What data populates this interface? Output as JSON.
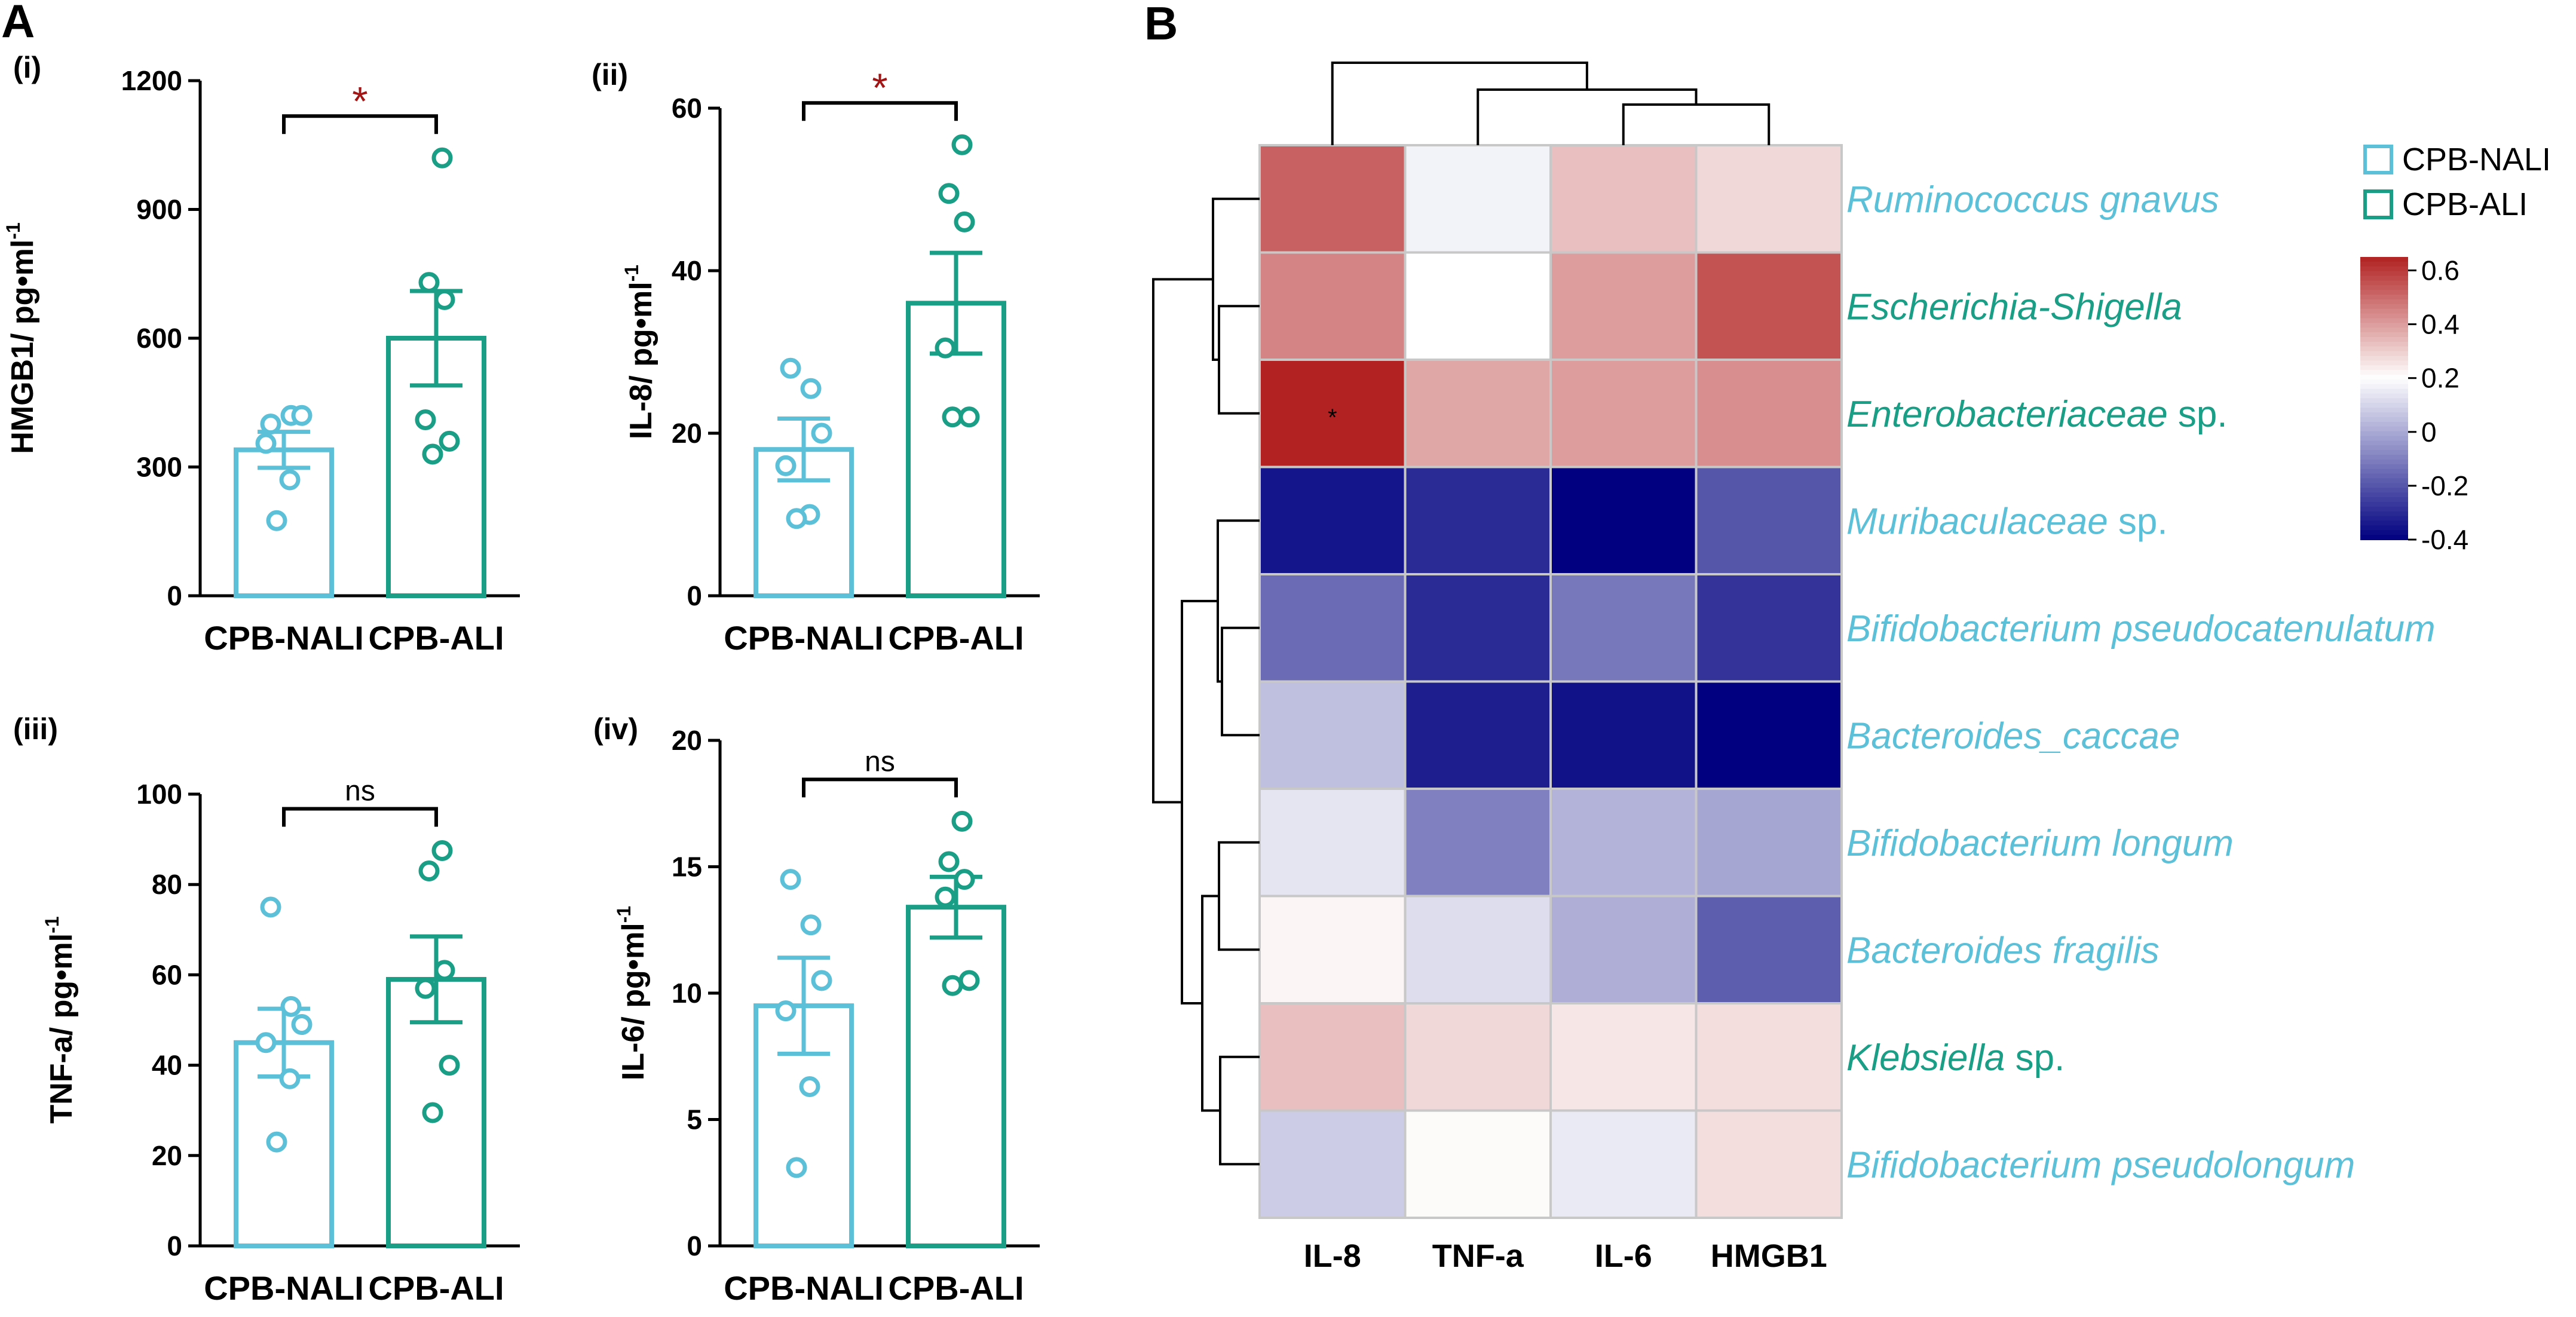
{
  "panel_labels": {
    "a": "A",
    "b": "B"
  },
  "colors": {
    "nali": "#5bc0d8",
    "ali": "#1a9e86",
    "sig": "#a31515",
    "axis": "#000000"
  },
  "chart_data": [
    {
      "type": "bar",
      "id": "p1",
      "sublabel": "(i)",
      "title": "",
      "ylabel": "HMGB1/ pg•ml",
      "ylabel_sup": "-1",
      "ylim": [
        0,
        1200
      ],
      "yticks": [
        "0",
        "300",
        "600",
        "900",
        "1200"
      ],
      "categories": [
        "CPB-NALI",
        "CPB-ALI"
      ],
      "means": [
        340,
        600
      ],
      "sem": [
        42,
        110
      ],
      "points": [
        [
          400,
          420,
          420,
          355,
          270,
          175
        ],
        [
          1020,
          730,
          690,
          410,
          360,
          330
        ]
      ],
      "significance": "*"
    },
    {
      "type": "bar",
      "id": "p2",
      "sublabel": "(ii)",
      "title": "",
      "ylabel": "IL-8/ pg•ml",
      "ylabel_sup": "-1",
      "ylim": [
        0,
        60
      ],
      "yticks": [
        "0",
        "20",
        "40",
        "60"
      ],
      "categories": [
        "CPB-NALI",
        "CPB-ALI"
      ],
      "means": [
        18,
        36
      ],
      "sem": [
        3.8,
        6.2
      ],
      "points": [
        [
          28,
          25.5,
          20,
          16,
          10,
          9.5
        ],
        [
          55.5,
          49.5,
          46,
          30.5,
          22,
          22
        ]
      ],
      "significance": "*"
    },
    {
      "type": "bar",
      "id": "p3",
      "sublabel": "(iii)",
      "title": "",
      "ylabel": "TNF-a/ pg•ml",
      "ylabel_sup": "-1",
      "ylim": [
        0,
        100
      ],
      "yticks": [
        "0",
        "20",
        "40",
        "60",
        "80",
        "100"
      ],
      "categories": [
        "CPB-NALI",
        "CPB-ALI"
      ],
      "means": [
        45,
        59
      ],
      "sem": [
        7.5,
        9.5
      ],
      "points": [
        [
          75,
          53,
          49,
          45,
          37,
          23
        ],
        [
          87.5,
          83,
          61,
          57,
          40,
          29.5
        ]
      ],
      "significance": "ns"
    },
    {
      "type": "bar",
      "id": "p4",
      "sublabel": "(iv)",
      "title": "",
      "ylabel": "IL-6/ pg•ml",
      "ylabel_sup": "-1",
      "ylim": [
        0,
        20
      ],
      "yticks": [
        "0",
        "5",
        "10",
        "15",
        "20"
      ],
      "categories": [
        "CPB-NALI",
        "CPB-ALI"
      ],
      "means": [
        9.5,
        13.4
      ],
      "sem": [
        1.9,
        1.2
      ],
      "points": [
        [
          14.5,
          12.7,
          10.5,
          9.3,
          6.3,
          3.1
        ],
        [
          16.8,
          15.2,
          14.5,
          13.8,
          10.5,
          10.3
        ]
      ],
      "significance": "ns"
    },
    {
      "type": "heatmap",
      "id": "heatmap",
      "title": "",
      "columns": [
        "IL-8",
        "TNF-a",
        "IL-6",
        "HMGB1"
      ],
      "rows": [
        {
          "name": "Ruminococcus gnavus",
          "suffix": "",
          "group": "CPB-NALI"
        },
        {
          "name": "Escherichia-Shigella",
          "suffix": "",
          "group": "CPB-ALI"
        },
        {
          "name": "Enterobacteriaceae",
          "suffix": " sp.",
          "group": "CPB-ALI"
        },
        {
          "name": "Muribaculaceae",
          "suffix": " sp.",
          "group": "CPB-NALI"
        },
        {
          "name": "Bifidobacterium pseudocatenulatum",
          "suffix": "",
          "group": "CPB-NALI"
        },
        {
          "name": "Bacteroides_caccae",
          "suffix": "",
          "group": "CPB-NALI"
        },
        {
          "name": "Bifidobacterium longum",
          "suffix": "",
          "group": "CPB-NALI"
        },
        {
          "name": "Bacteroides fragilis",
          "suffix": "",
          "group": "CPB-NALI"
        },
        {
          "name": "Klebsiella",
          "suffix": " sp.",
          "group": "CPB-ALI"
        },
        {
          "name": "Bifidobacterium pseudolongum",
          "suffix": "",
          "group": "CPB-NALI"
        }
      ],
      "values": [
        [
          0.52,
          0.17,
          0.33,
          0.28
        ],
        [
          0.45,
          0.2,
          0.4,
          0.55
        ],
        [
          0.65,
          0.38,
          0.4,
          0.43
        ],
        [
          -0.35,
          -0.3,
          -0.42,
          -0.2
        ],
        [
          -0.15,
          -0.3,
          -0.12,
          -0.28
        ],
        [
          0.05,
          -0.33,
          -0.36,
          -0.42
        ],
        [
          0.14,
          -0.1,
          0.02,
          -0.01
        ],
        [
          0.22,
          0.12,
          0.01,
          -0.18
        ],
        [
          0.33,
          0.28,
          0.25,
          0.27
        ],
        [
          0.08,
          0.21,
          0.15,
          0.27
        ]
      ],
      "significant_cells": [
        [
          2,
          0
        ]
      ],
      "significant_marker": "*",
      "colorbar": {
        "min": -0.4,
        "max": 0.65,
        "ticks": [
          "0.6",
          "0.4",
          "0.2",
          "0",
          "-0.2",
          "-0.4"
        ],
        "tick_values": [
          0.6,
          0.4,
          0.2,
          0,
          -0.2,
          -0.4
        ]
      },
      "legend": [
        {
          "label": "CPB-NALI",
          "group": "CPB-NALI"
        },
        {
          "label": "CPB-ALI",
          "group": "CPB-ALI"
        }
      ]
    }
  ]
}
